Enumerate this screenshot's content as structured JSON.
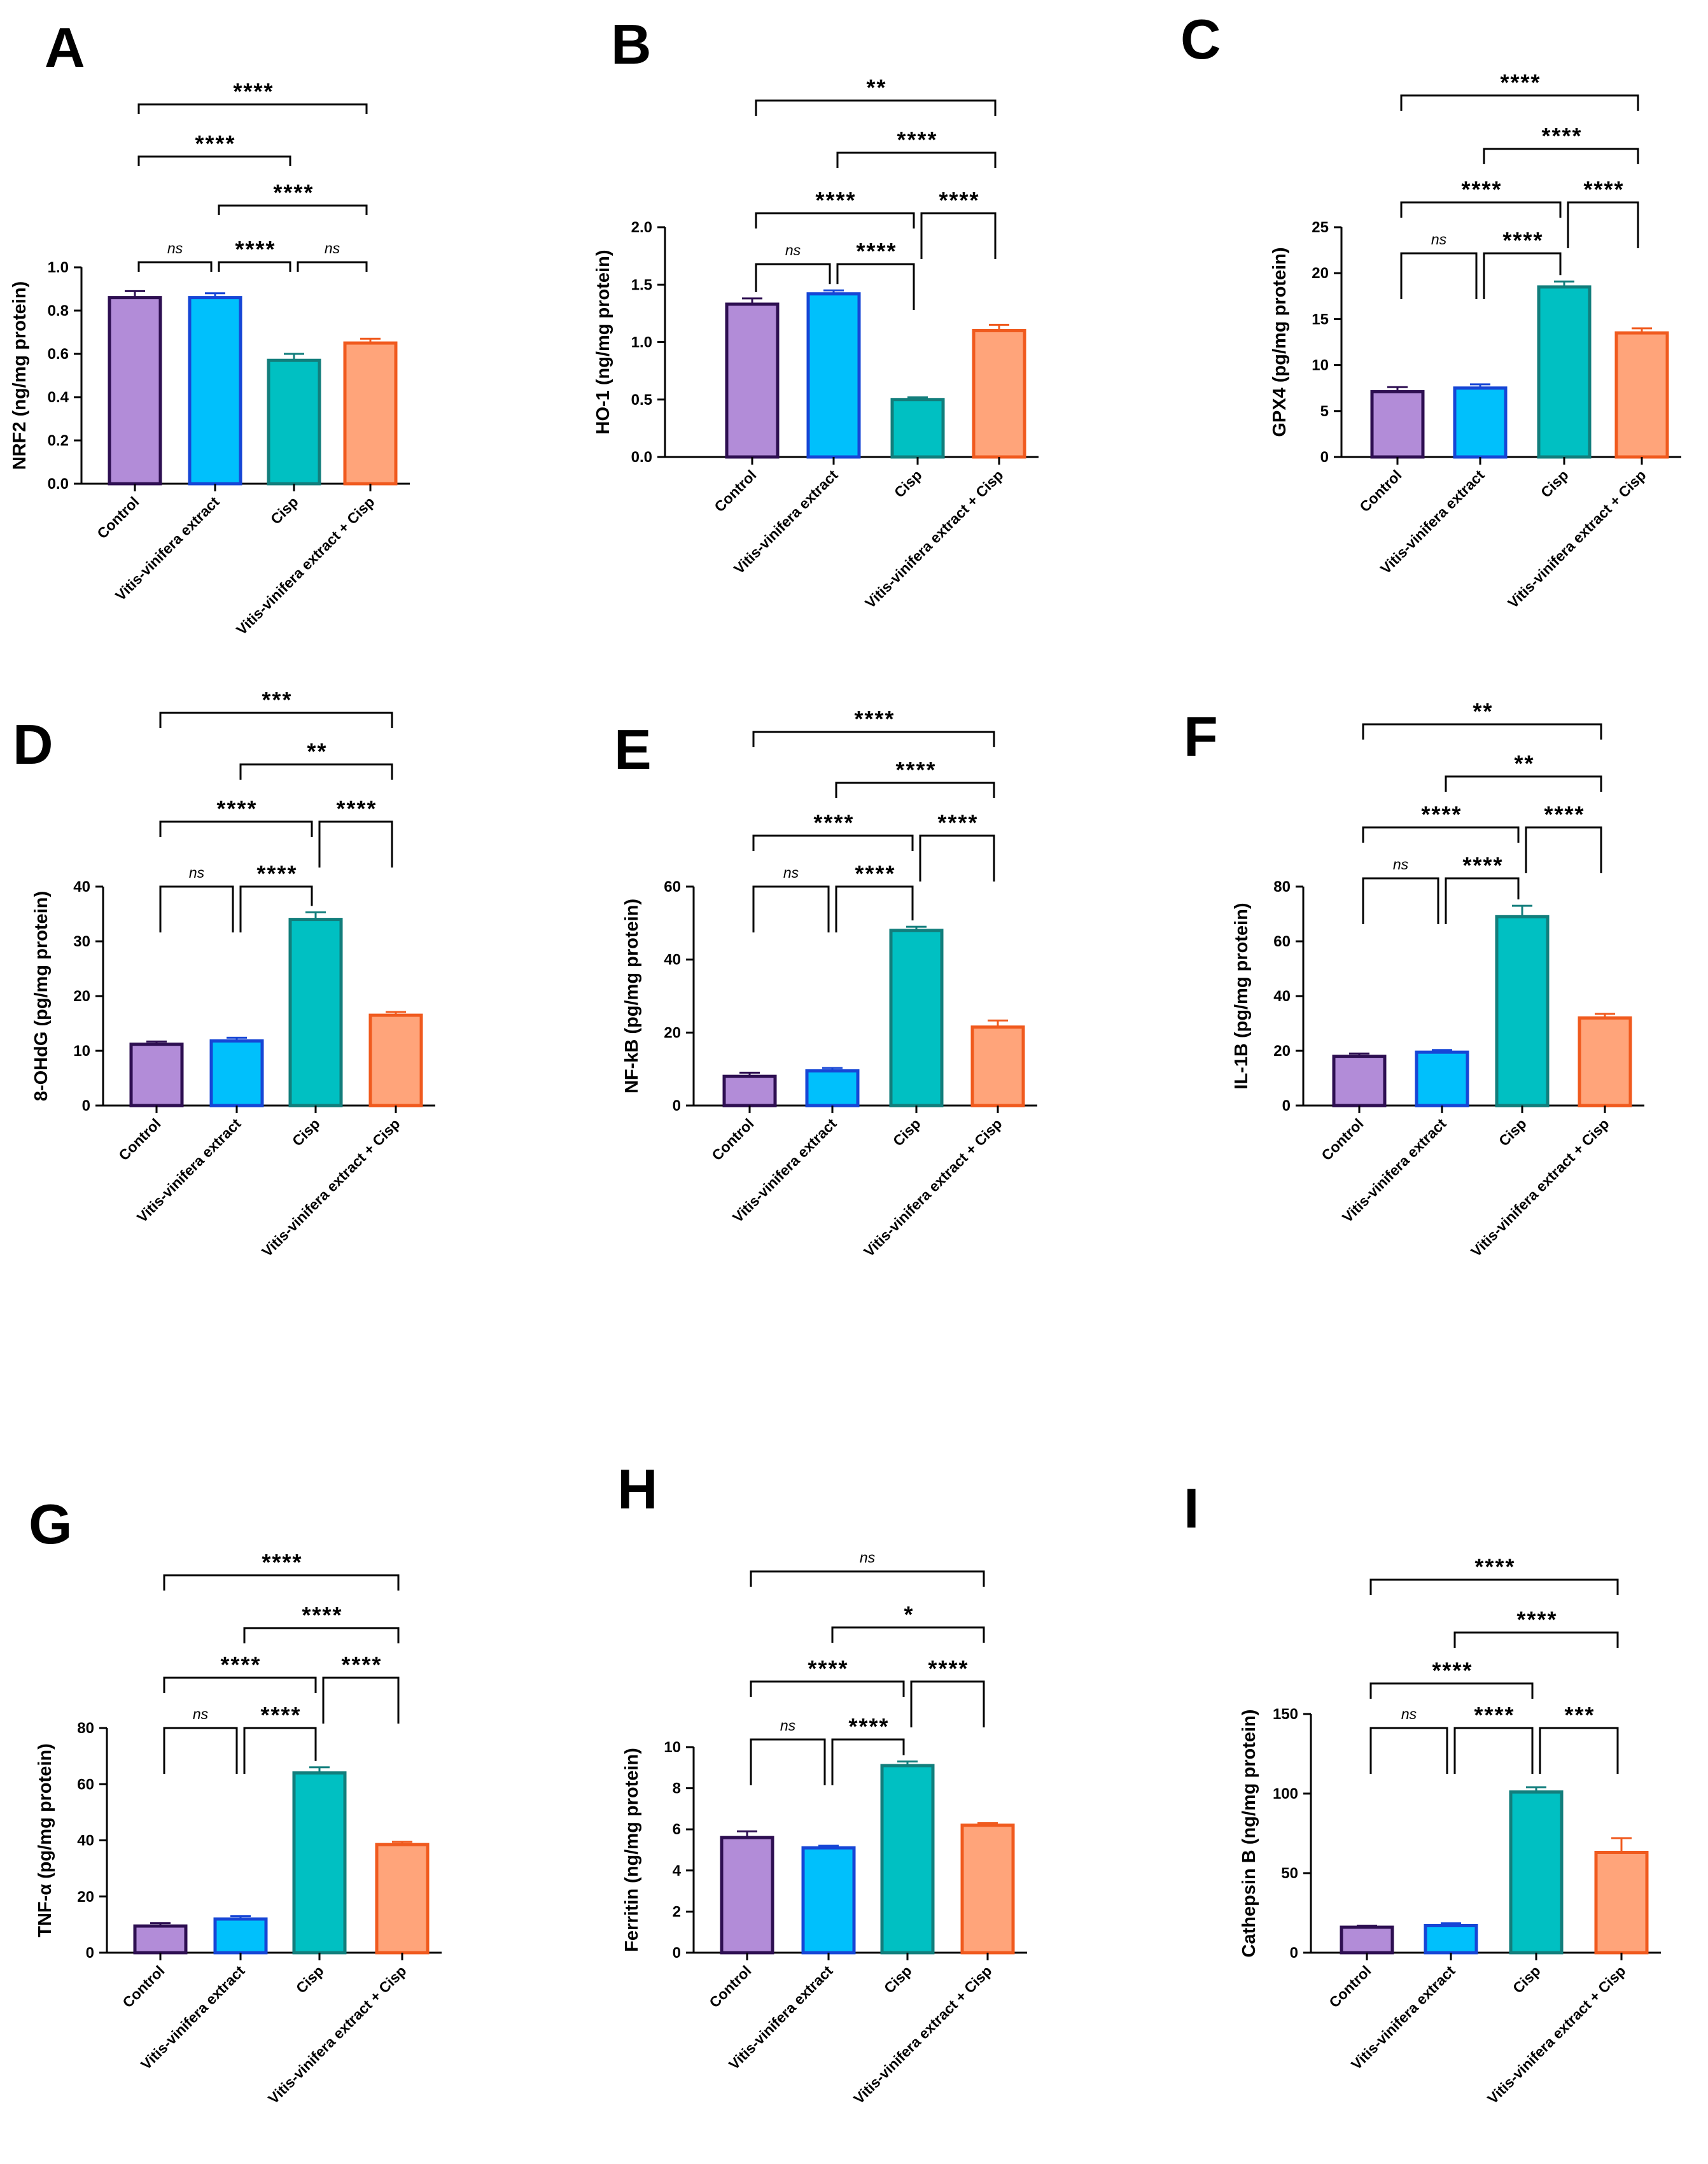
{
  "figure": {
    "categories": [
      "Control",
      "Vitis-vinifera extract",
      "Cisp",
      "Vitis-vinifera extract + Cisp"
    ],
    "colors": {
      "fill": [
        "#b28cd8",
        "#00c0fc",
        "#00c0c2",
        "#ffa47a"
      ],
      "edge": [
        "#2e0f52",
        "#1646d6",
        "#127e7c",
        "#f05a1e"
      ]
    }
  },
  "chart_data": [
    {
      "type": "bar",
      "letter": "A",
      "ylabel": "NRF2 (ng/mg protein)",
      "ylim": [
        0,
        1.0
      ],
      "yticks": [
        0.0,
        0.2,
        0.4,
        0.6,
        0.8,
        1.0
      ],
      "decimals": 1,
      "values": [
        0.86,
        0.86,
        0.57,
        0.65
      ],
      "errors": [
        0.03,
        0.02,
        0.03,
        0.02
      ],
      "comparisons": [
        {
          "a": 0,
          "b": 1,
          "label": "ns"
        },
        {
          "a": 1,
          "b": 2,
          "label": "****"
        },
        {
          "a": 2,
          "b": 3,
          "label": "ns"
        },
        {
          "a": 0,
          "b": 2,
          "label": "****"
        },
        {
          "a": 1,
          "b": 3,
          "label": "****"
        },
        {
          "a": 0,
          "b": 3,
          "label": "****"
        }
      ]
    },
    {
      "type": "bar",
      "letter": "B",
      "ylabel": "HO-1 (ng/mg protein)",
      "ylim": [
        0,
        2.0
      ],
      "yticks": [
        0.0,
        0.5,
        1.0,
        1.5,
        2.0
      ],
      "decimals": 1,
      "values": [
        1.33,
        1.42,
        0.5,
        1.1
      ],
      "errors": [
        0.05,
        0.03,
        0.02,
        0.05
      ],
      "comparisons": [
        {
          "a": 0,
          "b": 1,
          "label": "ns"
        },
        {
          "a": 1,
          "b": 2,
          "label": "****"
        },
        {
          "a": 0,
          "b": 2,
          "label": "****"
        },
        {
          "a": 2,
          "b": 3,
          "label": "****"
        },
        {
          "a": 1,
          "b": 3,
          "label": "****"
        },
        {
          "a": 0,
          "b": 3,
          "label": "**"
        }
      ]
    },
    {
      "type": "bar",
      "letter": "C",
      "ylabel": "GPX4 (pg/mg protein)",
      "ylim": [
        0,
        25
      ],
      "yticks": [
        0,
        5,
        10,
        15,
        20,
        25
      ],
      "decimals": 0,
      "values": [
        7.1,
        7.5,
        18.5,
        13.5
      ],
      "errors": [
        0.5,
        0.4,
        0.6,
        0.5
      ],
      "comparisons": [
        {
          "a": 0,
          "b": 1,
          "label": "ns"
        },
        {
          "a": 1,
          "b": 2,
          "label": "****"
        },
        {
          "a": 0,
          "b": 2,
          "label": "****"
        },
        {
          "a": 2,
          "b": 3,
          "label": "****"
        },
        {
          "a": 1,
          "b": 3,
          "label": "****"
        },
        {
          "a": 0,
          "b": 3,
          "label": "****"
        }
      ]
    },
    {
      "type": "bar",
      "letter": "D",
      "ylabel": "8-OHdG (pg/mg protein)",
      "ylim": [
        0,
        40
      ],
      "yticks": [
        0,
        10,
        20,
        30,
        40
      ],
      "decimals": 0,
      "values": [
        11.2,
        11.8,
        34.0,
        16.5
      ],
      "errors": [
        0.5,
        0.6,
        1.3,
        0.6
      ],
      "comparisons": [
        {
          "a": 0,
          "b": 1,
          "label": "ns"
        },
        {
          "a": 1,
          "b": 2,
          "label": "****"
        },
        {
          "a": 0,
          "b": 2,
          "label": "****"
        },
        {
          "a": 2,
          "b": 3,
          "label": "****"
        },
        {
          "a": 1,
          "b": 3,
          "label": "**"
        },
        {
          "a": 0,
          "b": 3,
          "label": "***"
        }
      ]
    },
    {
      "type": "bar",
      "letter": "E",
      "ylabel": "NF-kB  (pg/mg protein)",
      "ylim": [
        0,
        60
      ],
      "yticks": [
        0,
        20,
        40,
        60
      ],
      "decimals": 0,
      "values": [
        8.0,
        9.5,
        48.0,
        21.5
      ],
      "errors": [
        1.0,
        0.8,
        1.0,
        1.8
      ],
      "comparisons": [
        {
          "a": 0,
          "b": 1,
          "label": "ns"
        },
        {
          "a": 1,
          "b": 2,
          "label": "****"
        },
        {
          "a": 0,
          "b": 2,
          "label": "****"
        },
        {
          "a": 2,
          "b": 3,
          "label": "****"
        },
        {
          "a": 1,
          "b": 3,
          "label": "****"
        },
        {
          "a": 0,
          "b": 3,
          "label": "****"
        }
      ]
    },
    {
      "type": "bar",
      "letter": "F",
      "ylabel": "IL-1B (pg/mg protein)",
      "ylim": [
        0,
        80
      ],
      "yticks": [
        0,
        20,
        40,
        60,
        80
      ],
      "decimals": 0,
      "values": [
        18.0,
        19.5,
        69.0,
        32.0
      ],
      "errors": [
        1.0,
        0.8,
        4.0,
        1.5
      ],
      "comparisons": [
        {
          "a": 0,
          "b": 1,
          "label": "ns"
        },
        {
          "a": 1,
          "b": 2,
          "label": "****"
        },
        {
          "a": 0,
          "b": 2,
          "label": "****"
        },
        {
          "a": 2,
          "b": 3,
          "label": "****"
        },
        {
          "a": 1,
          "b": 3,
          "label": "**"
        },
        {
          "a": 0,
          "b": 3,
          "label": "**"
        }
      ]
    },
    {
      "type": "bar",
      "letter": "G",
      "ylabel": "TNF-α (pg/mg protein)",
      "ylim": [
        0,
        80
      ],
      "yticks": [
        0,
        20,
        40,
        60,
        80
      ],
      "decimals": 0,
      "values": [
        9.5,
        12.0,
        64.0,
        38.5
      ],
      "errors": [
        1.0,
        1.0,
        2.0,
        1.0
      ],
      "comparisons": [
        {
          "a": 0,
          "b": 1,
          "label": "ns"
        },
        {
          "a": 1,
          "b": 2,
          "label": "****"
        },
        {
          "a": 0,
          "b": 2,
          "label": "****"
        },
        {
          "a": 2,
          "b": 3,
          "label": "****"
        },
        {
          "a": 1,
          "b": 3,
          "label": "****"
        },
        {
          "a": 0,
          "b": 3,
          "label": "****"
        }
      ]
    },
    {
      "type": "bar",
      "letter": "H",
      "ylabel": "Ferritin (ng/mg protein)",
      "ylim": [
        0,
        10
      ],
      "yticks": [
        0,
        2,
        4,
        6,
        8,
        10
      ],
      "decimals": 0,
      "values": [
        5.6,
        5.1,
        9.1,
        6.2
      ],
      "errors": [
        0.3,
        0.1,
        0.2,
        0.1
      ],
      "comparisons": [
        {
          "a": 0,
          "b": 1,
          "label": "ns"
        },
        {
          "a": 1,
          "b": 2,
          "label": "****"
        },
        {
          "a": 0,
          "b": 2,
          "label": "****"
        },
        {
          "a": 2,
          "b": 3,
          "label": "****"
        },
        {
          "a": 1,
          "b": 3,
          "label": "*"
        },
        {
          "a": 0,
          "b": 3,
          "label": "ns"
        }
      ]
    },
    {
      "type": "bar",
      "letter": "I",
      "ylabel": "Cathepsin B (ng/mg protein)",
      "ylim": [
        0,
        150
      ],
      "yticks": [
        0,
        50,
        100,
        150
      ],
      "decimals": 0,
      "values": [
        16.0,
        17.0,
        101.0,
        63.0
      ],
      "errors": [
        1.0,
        1.5,
        3.0,
        9.0
      ],
      "comparisons": [
        {
          "a": 0,
          "b": 1,
          "label": "ns"
        },
        {
          "a": 1,
          "b": 2,
          "label": "****"
        },
        {
          "a": 2,
          "b": 3,
          "label": "***"
        },
        {
          "a": 0,
          "b": 2,
          "label": "****"
        },
        {
          "a": 1,
          "b": 3,
          "label": "****"
        },
        {
          "a": 0,
          "b": 3,
          "label": "****"
        }
      ]
    }
  ]
}
